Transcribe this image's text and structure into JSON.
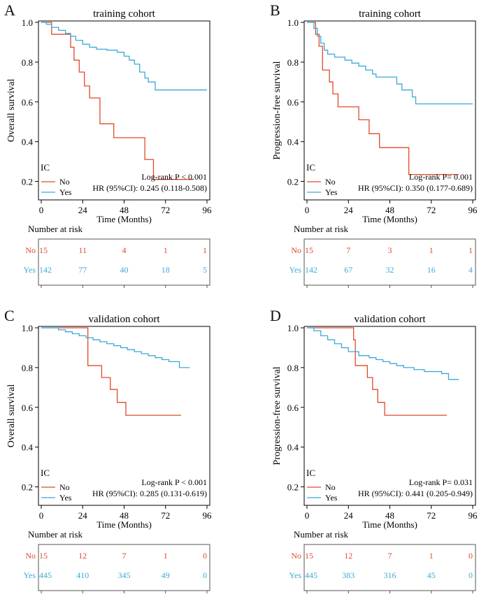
{
  "colors": {
    "no": "#e0492a",
    "yes": "#3ca9d6",
    "axis": "#000000",
    "risk_border": "#555555"
  },
  "risk_table_title": "Number at risk",
  "chart_data": [
    {
      "type": "line",
      "panel_label": "A",
      "title": "training cohort",
      "xlabel": "Time (Months)",
      "ylabel": "Overall survival",
      "xlim": [
        0,
        96
      ],
      "ylim": [
        0.1,
        1.0
      ],
      "xticks": [
        0,
        24,
        48,
        72,
        96
      ],
      "yticks": [
        0.2,
        0.4,
        0.6,
        0.8,
        1.0
      ],
      "legend_title": "IC",
      "stat_logrank": "Log-rank P < 0.001",
      "stat_hr": "HR (95%CI): 0.245 (0.118-0.508)",
      "series": [
        {
          "name": "No",
          "color_key": "no",
          "end_x": 88,
          "steps": [
            [
              0,
              1.0
            ],
            [
              6,
              0.94
            ],
            [
              17,
              0.875
            ],
            [
              19,
              0.81
            ],
            [
              22,
              0.75
            ],
            [
              25,
              0.68
            ],
            [
              28,
              0.62
            ],
            [
              34,
              0.49
            ],
            [
              42,
              0.42
            ],
            [
              60,
              0.31
            ],
            [
              65,
              0.21
            ]
          ]
        },
        {
          "name": "Yes",
          "color_key": "yes",
          "end_x": 96,
          "steps": [
            [
              0,
              1.0
            ],
            [
              3,
              0.99
            ],
            [
              6,
              0.975
            ],
            [
              10,
              0.96
            ],
            [
              14,
              0.945
            ],
            [
              17,
              0.93
            ],
            [
              20,
              0.91
            ],
            [
              24,
              0.89
            ],
            [
              28,
              0.875
            ],
            [
              32,
              0.865
            ],
            [
              38,
              0.86
            ],
            [
              44,
              0.85
            ],
            [
              48,
              0.83
            ],
            [
              51,
              0.81
            ],
            [
              54,
              0.79
            ],
            [
              57,
              0.75
            ],
            [
              60,
              0.72
            ],
            [
              62,
              0.7
            ],
            [
              66,
              0.66
            ]
          ]
        }
      ],
      "risk": {
        "rows": [
          {
            "label": "No",
            "color_key": "no",
            "values": [
              "15",
              "11",
              "4",
              "1",
              "1"
            ]
          },
          {
            "label": "Yes",
            "color_key": "yes",
            "values": [
              "142",
              "77",
              "40",
              "18",
              "5"
            ]
          }
        ]
      }
    },
    {
      "type": "line",
      "panel_label": "B",
      "title": "training cohort",
      "xlabel": "Time (Months)",
      "ylabel": "Progression-free survival",
      "xlim": [
        0,
        96
      ],
      "ylim": [
        0.1,
        1.0
      ],
      "xticks": [
        0,
        24,
        48,
        72,
        96
      ],
      "yticks": [
        0.2,
        0.4,
        0.6,
        0.8,
        1.0
      ],
      "legend_title": "IC",
      "stat_logrank": "Log-rank P= 0.001",
      "stat_hr": "HR (95%CI): 0.350 (0.177-0.689)",
      "series": [
        {
          "name": "No",
          "color_key": "no",
          "end_x": 88,
          "steps": [
            [
              0,
              1.0
            ],
            [
              5,
              0.94
            ],
            [
              7,
              0.88
            ],
            [
              9,
              0.76
            ],
            [
              13,
              0.7
            ],
            [
              15,
              0.64
            ],
            [
              18,
              0.575
            ],
            [
              30,
              0.51
            ],
            [
              36,
              0.44
            ],
            [
              42,
              0.37
            ],
            [
              59,
              0.235
            ]
          ]
        },
        {
          "name": "Yes",
          "color_key": "yes",
          "end_x": 96,
          "steps": [
            [
              0,
              1.0
            ],
            [
              4,
              0.97
            ],
            [
              6,
              0.93
            ],
            [
              8,
              0.895
            ],
            [
              10,
              0.86
            ],
            [
              12,
              0.84
            ],
            [
              16,
              0.825
            ],
            [
              22,
              0.81
            ],
            [
              26,
              0.795
            ],
            [
              30,
              0.78
            ],
            [
              34,
              0.76
            ],
            [
              38,
              0.74
            ],
            [
              40,
              0.725
            ],
            [
              52,
              0.69
            ],
            [
              55,
              0.66
            ],
            [
              61,
              0.625
            ],
            [
              63,
              0.59
            ]
          ]
        }
      ],
      "risk": {
        "rows": [
          {
            "label": "No",
            "color_key": "no",
            "values": [
              "15",
              "7",
              "3",
              "1",
              "1"
            ]
          },
          {
            "label": "Yes",
            "color_key": "yes",
            "values": [
              "142",
              "67",
              "32",
              "16",
              "4"
            ]
          }
        ]
      }
    },
    {
      "type": "line",
      "panel_label": "C",
      "title": "validation cohort",
      "xlabel": "Time (Months)",
      "ylabel": "Overall survival",
      "xlim": [
        0,
        96
      ],
      "ylim": [
        0.1,
        1.0
      ],
      "xticks": [
        0,
        24,
        48,
        72,
        96
      ],
      "yticks": [
        0.2,
        0.4,
        0.6,
        0.8,
        1.0
      ],
      "legend_title": "IC",
      "stat_logrank": "Log-rank P < 0.001",
      "stat_hr": "HR (95%CI): 0.285 (0.131-0.619)",
      "series": [
        {
          "name": "No",
          "color_key": "no",
          "end_x": 81,
          "steps": [
            [
              0,
              1.0
            ],
            [
              27,
              0.81
            ],
            [
              35,
              0.75
            ],
            [
              40,
              0.69
            ],
            [
              44,
              0.625
            ],
            [
              49,
              0.56
            ]
          ]
        },
        {
          "name": "Yes",
          "color_key": "yes",
          "end_x": 86,
          "steps": [
            [
              0,
              1.0
            ],
            [
              10,
              0.99
            ],
            [
              14,
              0.98
            ],
            [
              18,
              0.97
            ],
            [
              22,
              0.96
            ],
            [
              26,
              0.95
            ],
            [
              30,
              0.94
            ],
            [
              34,
              0.93
            ],
            [
              38,
              0.92
            ],
            [
              42,
              0.91
            ],
            [
              46,
              0.9
            ],
            [
              50,
              0.89
            ],
            [
              54,
              0.88
            ],
            [
              58,
              0.87
            ],
            [
              62,
              0.86
            ],
            [
              66,
              0.85
            ],
            [
              70,
              0.84
            ],
            [
              74,
              0.83
            ],
            [
              80,
              0.8
            ]
          ]
        }
      ],
      "risk": {
        "rows": [
          {
            "label": "No",
            "color_key": "no",
            "values": [
              "15",
              "12",
              "7",
              "1",
              "0"
            ]
          },
          {
            "label": "Yes",
            "color_key": "yes",
            "values": [
              "445",
              "410",
              "345",
              "49",
              "0"
            ]
          }
        ]
      }
    },
    {
      "type": "line",
      "panel_label": "D",
      "title": "validation cohort",
      "xlabel": "Time (Months)",
      "ylabel": "Progression-free survival",
      "xlim": [
        0,
        96
      ],
      "ylim": [
        0.1,
        1.0
      ],
      "xticks": [
        0,
        24,
        48,
        72,
        96
      ],
      "yticks": [
        0.2,
        0.4,
        0.6,
        0.8,
        1.0
      ],
      "legend_title": "IC",
      "stat_logrank": "Log-rank P= 0.031",
      "stat_hr": "HR (95%CI): 0.441 (0.205-0.949)",
      "series": [
        {
          "name": "No",
          "color_key": "no",
          "end_x": 81,
          "steps": [
            [
              0,
              1.0
            ],
            [
              27,
              0.94
            ],
            [
              28,
              0.81
            ],
            [
              35,
              0.75
            ],
            [
              38,
              0.69
            ],
            [
              41,
              0.625
            ],
            [
              45,
              0.56
            ]
          ]
        },
        {
          "name": "Yes",
          "color_key": "yes",
          "end_x": 88,
          "steps": [
            [
              0,
              1.0
            ],
            [
              4,
              0.985
            ],
            [
              8,
              0.96
            ],
            [
              12,
              0.94
            ],
            [
              16,
              0.92
            ],
            [
              20,
              0.9
            ],
            [
              24,
              0.88
            ],
            [
              30,
              0.86
            ],
            [
              36,
              0.85
            ],
            [
              40,
              0.84
            ],
            [
              44,
              0.83
            ],
            [
              48,
              0.82
            ],
            [
              52,
              0.81
            ],
            [
              56,
              0.8
            ],
            [
              62,
              0.79
            ],
            [
              68,
              0.78
            ],
            [
              78,
              0.77
            ],
            [
              82,
              0.74
            ]
          ]
        }
      ],
      "risk": {
        "rows": [
          {
            "label": "No",
            "color_key": "no",
            "values": [
              "15",
              "12",
              "7",
              "1",
              "0"
            ]
          },
          {
            "label": "Yes",
            "color_key": "yes",
            "values": [
              "445",
              "383",
              "316",
              "45",
              "0"
            ]
          }
        ]
      }
    }
  ]
}
